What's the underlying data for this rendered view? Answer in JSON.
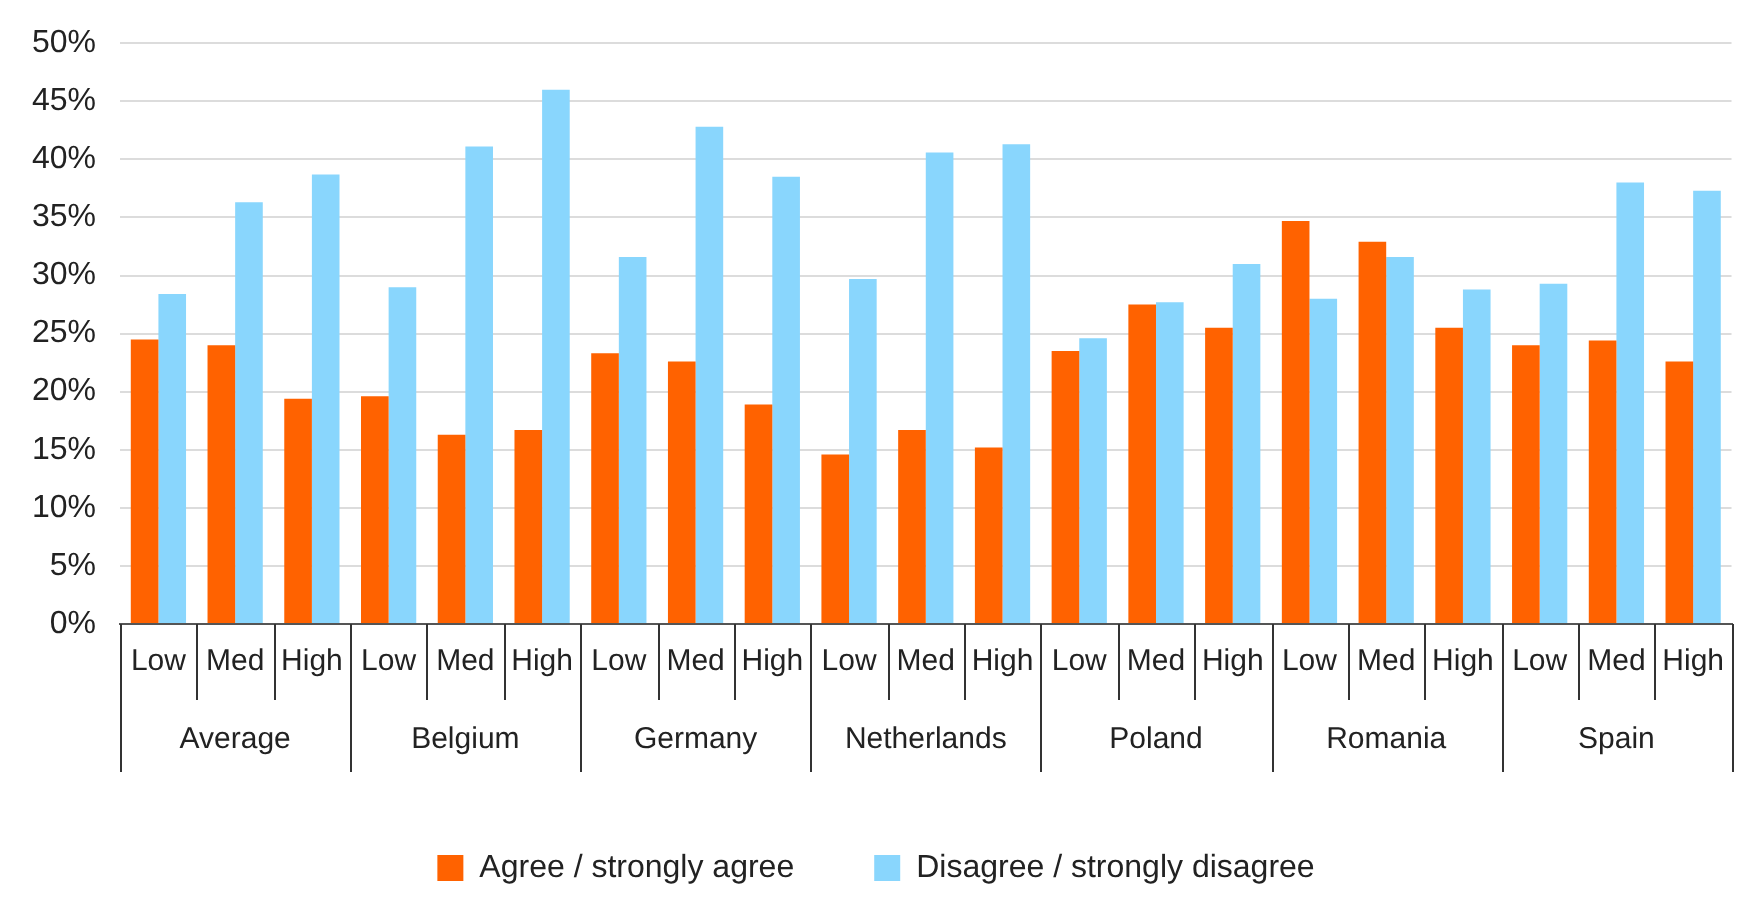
{
  "chart_data": {
    "type": "bar",
    "categories": [
      "Low",
      "Med",
      "High",
      "Low",
      "Med",
      "High",
      "Low",
      "Med",
      "High",
      "Low",
      "Med",
      "High",
      "Low",
      "Med",
      "High",
      "Low",
      "Med",
      "High",
      "Low",
      "Med",
      "High"
    ],
    "annotations": [
      "Average",
      "Belgium",
      "Germany",
      "Netherlands",
      "Poland",
      "Romania",
      "Spain"
    ],
    "series": [
      {
        "name": "Agree / strongly agree",
        "color": "#ff6200",
        "values": [
          24.5,
          24.0,
          19.4,
          19.6,
          16.3,
          16.7,
          23.3,
          22.6,
          18.9,
          14.6,
          16.7,
          15.2,
          23.5,
          27.5,
          25.5,
          34.7,
          32.9,
          25.5,
          24.0,
          24.4,
          22.6
        ]
      },
      {
        "name": "Disagree / strongly disagree",
        "color": "#89d6fd",
        "values": [
          28.4,
          36.3,
          38.7,
          29.0,
          41.1,
          46.0,
          31.6,
          42.8,
          38.5,
          29.7,
          40.6,
          41.3,
          24.6,
          27.7,
          31.0,
          28.0,
          31.6,
          28.8,
          29.3,
          38.0,
          37.3
        ]
      }
    ],
    "ylim": [
      0,
      50
    ],
    "yticks": [
      {
        "value": 0,
        "label": "0%"
      },
      {
        "value": 5,
        "label": "5%"
      },
      {
        "value": 10,
        "label": "10%"
      },
      {
        "value": 15,
        "label": "15%"
      },
      {
        "value": 20,
        "label": "20%"
      },
      {
        "value": 25,
        "label": "25%"
      },
      {
        "value": 30,
        "label": "30%"
      },
      {
        "value": 35,
        "label": "35%"
      },
      {
        "value": 40,
        "label": "40%"
      },
      {
        "value": 45,
        "label": "45%"
      },
      {
        "value": 50,
        "label": "50%"
      }
    ],
    "grid": "y",
    "legend": "bottom"
  }
}
